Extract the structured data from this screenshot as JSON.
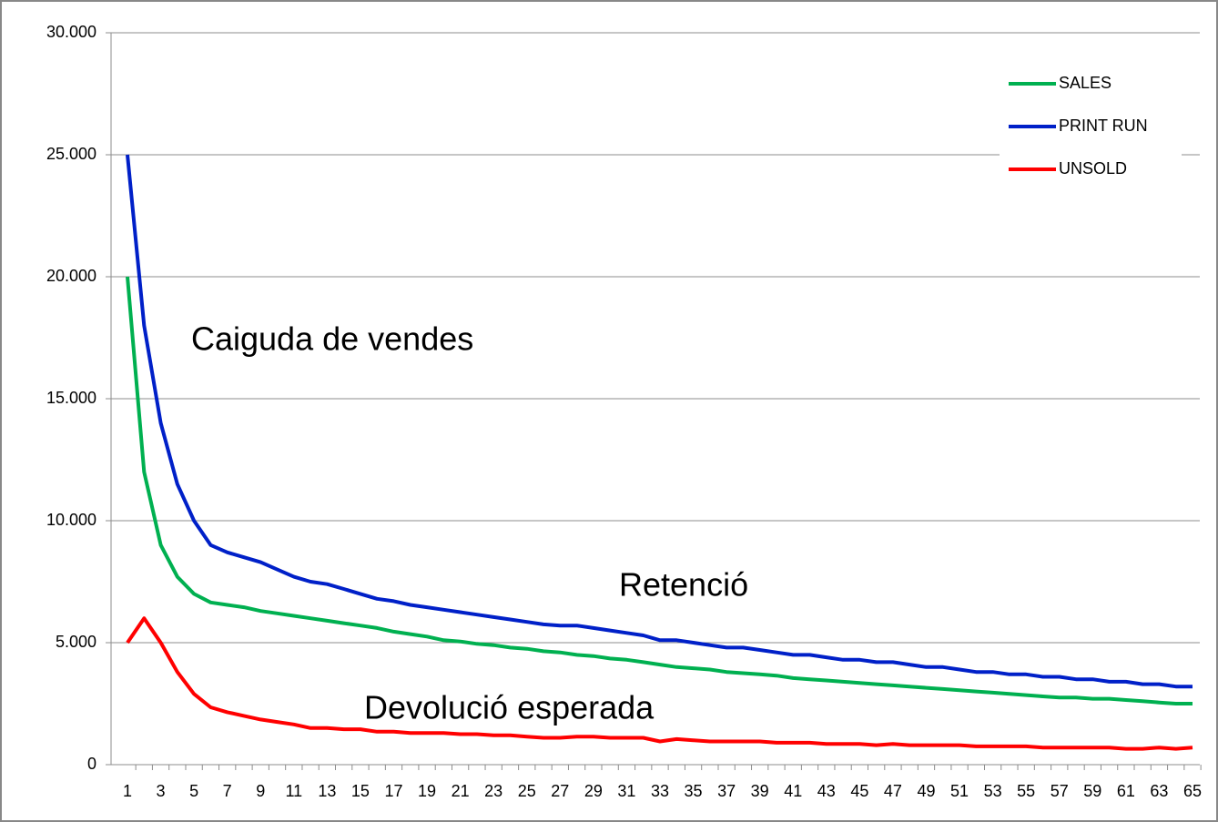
{
  "chart_data": {
    "type": "line",
    "categories": [
      1,
      null,
      3,
      null,
      5,
      null,
      7,
      null,
      9,
      null,
      11,
      null,
      13,
      null,
      15,
      null,
      17,
      null,
      19,
      null,
      21,
      null,
      23,
      null,
      25,
      null,
      27,
      null,
      29,
      null,
      31,
      null,
      33,
      null,
      35,
      null,
      37,
      null,
      39,
      null,
      41,
      null,
      43,
      null,
      45,
      null,
      47,
      null,
      49,
      null,
      51,
      null,
      53,
      null,
      55,
      null,
      57,
      null,
      59,
      null,
      61,
      null,
      63,
      null,
      65
    ],
    "series": [
      {
        "name": "SALES",
        "color": "#00b050",
        "values": [
          20000,
          12000,
          9000,
          7700,
          7000,
          6650,
          6550,
          6450,
          6300,
          6200,
          6100,
          6000,
          5900,
          5800,
          5700,
          5600,
          5450,
          5350,
          5250,
          5100,
          5050,
          4950,
          4900,
          4800,
          4750,
          4650,
          4600,
          4500,
          4450,
          4350,
          4300,
          4200,
          4100,
          4000,
          3950,
          3900,
          3800,
          3750,
          3700,
          3650,
          3550,
          3500,
          3450,
          3400,
          3350,
          3300,
          3250,
          3200,
          3150,
          3100,
          3050,
          3000,
          2950,
          2900,
          2850,
          2800,
          2750,
          2750,
          2700,
          2700,
          2650,
          2600,
          2550,
          2500,
          2500
        ]
      },
      {
        "name": "PRINT RUN",
        "color": "#0020c8",
        "values": [
          25000,
          18000,
          14000,
          11500,
          10000,
          9000,
          8700,
          8500,
          8300,
          8000,
          7700,
          7500,
          7400,
          7200,
          7000,
          6800,
          6700,
          6550,
          6450,
          6350,
          6250,
          6150,
          6050,
          5950,
          5850,
          5750,
          5700,
          5700,
          5600,
          5500,
          5400,
          5300,
          5100,
          5100,
          5000,
          4900,
          4800,
          4800,
          4700,
          4600,
          4500,
          4500,
          4400,
          4300,
          4300,
          4200,
          4200,
          4100,
          4000,
          4000,
          3900,
          3800,
          3800,
          3700,
          3700,
          3600,
          3600,
          3500,
          3500,
          3400,
          3400,
          3300,
          3300,
          3200,
          3200
        ]
      },
      {
        "name": "UNSOLD",
        "color": "#ff0000",
        "values": [
          5000,
          6000,
          5000,
          3800,
          2900,
          2350,
          2150,
          2000,
          1850,
          1750,
          1650,
          1500,
          1500,
          1450,
          1450,
          1350,
          1350,
          1300,
          1300,
          1300,
          1250,
          1250,
          1200,
          1200,
          1150,
          1100,
          1100,
          1150,
          1150,
          1100,
          1100,
          1100,
          950,
          1050,
          1000,
          950,
          950,
          950,
          950,
          900,
          900,
          900,
          850,
          850,
          850,
          800,
          850,
          800,
          800,
          800,
          800,
          750,
          750,
          750,
          750,
          700,
          700,
          700,
          700,
          700,
          650,
          650,
          700,
          650,
          700
        ]
      }
    ],
    "ylim": [
      0,
      30000
    ],
    "yticks": [
      0,
      {
        "value": 5000,
        "label": "5.000"
      },
      {
        "value": 10000,
        "label": "10.000"
      },
      {
        "value": 15000,
        "label": "15.000"
      },
      {
        "value": 20000,
        "label": "20.000"
      },
      {
        "value": 25000,
        "label": "25.000"
      },
      {
        "value": 30000,
        "label": "30.000"
      }
    ],
    "grid": true,
    "legend": "top-right",
    "annotations": [
      "Caiguda de vendes",
      "Retenció",
      "Devolució esperada"
    ]
  }
}
